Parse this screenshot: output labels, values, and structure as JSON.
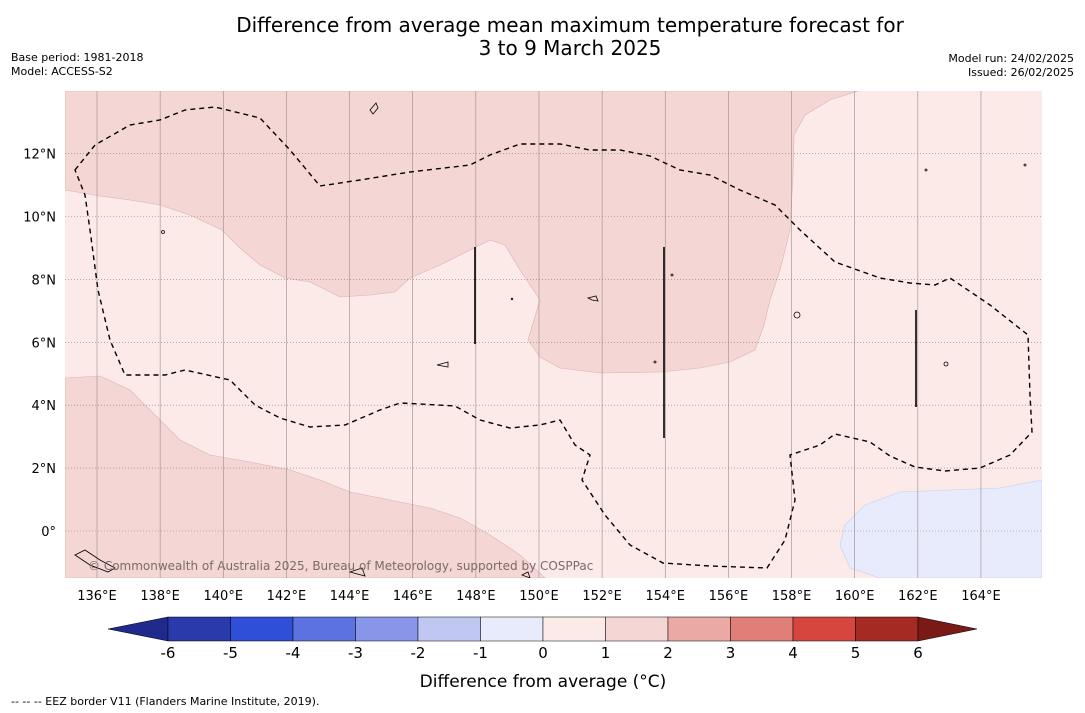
{
  "title": {
    "line1": "Difference from average mean maximum temperature forecast for",
    "line2": "3 to 9 March 2025"
  },
  "meta_left": {
    "base_period": "Base period: 1981-2018",
    "model": "Model: ACCESS-S2"
  },
  "meta_right": {
    "model_run": "Model run: 24/02/2025",
    "issued": "Issued: 26/02/2025"
  },
  "map": {
    "lon_range": [
      135,
      166
    ],
    "lat_range": [
      -1.5,
      14
    ],
    "lon_ticks": [
      "136°E",
      "138°E",
      "140°E",
      "142°E",
      "144°E",
      "146°E",
      "148°E",
      "150°E",
      "152°E",
      "154°E",
      "156°E",
      "158°E",
      "160°E",
      "162°E",
      "164°E"
    ],
    "lat_ticks": [
      "12°N",
      "10°N",
      "8°N",
      "6°N",
      "4°N",
      "2°N",
      "0°"
    ],
    "regions": [
      {
        "category": "1 to 2",
        "color": "#f4d6d4"
      },
      {
        "category": "0 to 1",
        "color": "#fbeae8"
      },
      {
        "category": "-1 to 0",
        "color": "#e8ebfb"
      }
    ],
    "attribution": "© Commonwealth of Australia 2025, Bureau of Meteorology, supported by COSPPac"
  },
  "colorbar": {
    "label": "Difference from average (°C)",
    "ticks": [
      "-6",
      "-5",
      "-4",
      "-3",
      "-2",
      "-1",
      "0",
      "1",
      "2",
      "3",
      "4",
      "5",
      "6"
    ],
    "colors": [
      "#1f2a8c",
      "#2a3aaa",
      "#2f4fd8",
      "#5b72e0",
      "#8796e8",
      "#c0c8f2",
      "#e8ebfb",
      "#fbeae8",
      "#f4d6d4",
      "#eaa9a5",
      "#e07e78",
      "#d6463e",
      "#a52a24",
      "#7a1a16"
    ]
  },
  "footnote": "--  --  -- EEZ border V11 (Flanders Marine Institute, 2019)."
}
